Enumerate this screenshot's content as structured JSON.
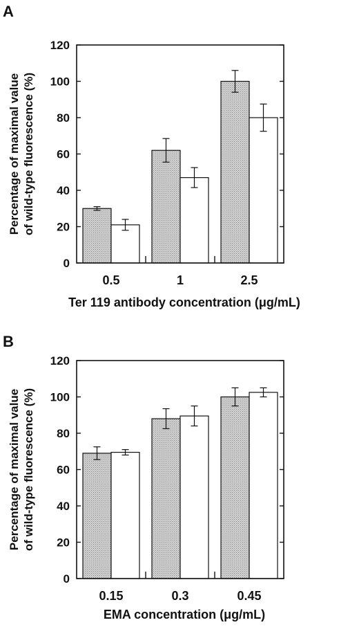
{
  "chart_data": [
    {
      "type": "bar",
      "panel": "A",
      "categories": [
        "0.5",
        "1",
        "2.5"
      ],
      "series": [
        {
          "fill": "#c8c8c8",
          "values": [
            30,
            62,
            100
          ],
          "errors": [
            1,
            6.5,
            6
          ]
        },
        {
          "fill": "#ffffff",
          "values": [
            21,
            47,
            80
          ],
          "errors": [
            3,
            5.5,
            7.5
          ]
        }
      ],
      "xlabel": "Ter 119 antibody concentration (μg/mL)",
      "ylabel_lines": [
        "Percentage of maximal value",
        "of wild-type fluorescence (%)"
      ],
      "ylim": [
        0,
        120
      ],
      "yticks": [
        "0",
        "20",
        "40",
        "60",
        "80",
        "100",
        "120"
      ],
      "grid": false
    },
    {
      "type": "bar",
      "panel": "B",
      "categories": [
        "0.15",
        "0.3",
        "0.45"
      ],
      "series": [
        {
          "fill": "#c8c8c8",
          "values": [
            69,
            88,
            100
          ],
          "errors": [
            3.5,
            5.5,
            5
          ]
        },
        {
          "fill": "#ffffff",
          "values": [
            69.5,
            89.5,
            102.5
          ],
          "errors": [
            1.5,
            5.5,
            2.5
          ]
        }
      ],
      "xlabel": "EMA concentration (μg/mL)",
      "ylabel_lines": [
        "Percentage of maximal value",
        "of wild-type fluorescence (%)"
      ],
      "ylim": [
        0,
        120
      ],
      "yticks": [
        "0",
        "20",
        "40",
        "60",
        "80",
        "100",
        "120"
      ],
      "grid": false
    }
  ]
}
